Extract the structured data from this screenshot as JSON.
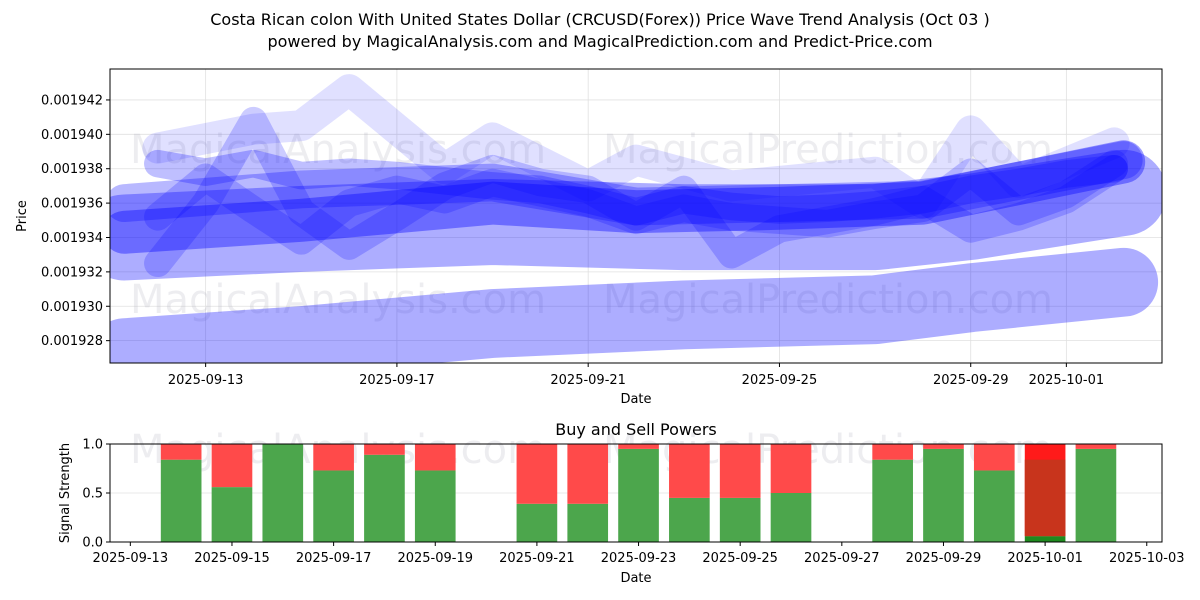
{
  "header": {
    "title": "Costa Rican colon With United States Dollar (CRCUSD(Forex)) Price Wave Trend Analysis (Oct 03 )",
    "subtitle": "powered by MagicalAnalysis.com and MagicalPrediction.com and Predict-Price.com"
  },
  "watermarks": [
    "MagicalAnalysis.com",
    "MagicalPrediction.com"
  ],
  "colors": {
    "wave": "#0000ff",
    "buy": "#4ca64c",
    "sell": "#ff4a4a",
    "sell_strong": "#ff1a1a",
    "overlay_dark": "#c8341c",
    "buy_dark": "#1f8a1f",
    "grid": "#e0e0e0"
  },
  "chart_data": [
    {
      "type": "area",
      "title": "",
      "xlabel": "Date",
      "ylabel": "Price",
      "xlim": [
        "2025-09-11",
        "2025-10-03"
      ],
      "ylim": [
        0.0019267,
        0.0019438
      ],
      "x_ticks": [
        "2025-09-13",
        "2025-09-17",
        "2025-09-21",
        "2025-09-25",
        "2025-09-29",
        "2025-10-01"
      ],
      "y_ticks": [
        "0.001928",
        "0.001930",
        "0.001932",
        "0.001934",
        "0.001936",
        "0.001938",
        "0.001940",
        "0.001942"
      ],
      "grid": true,
      "series": [
        {
          "name": "wave-low-band",
          "opacity": 0.32,
          "width": 4e-06,
          "x": [
            "2025-09-11.3",
            "2025-09-15",
            "2025-09-19",
            "2025-09-23",
            "2025-09-27",
            "2025-09-29",
            "2025-10-02.2"
          ],
          "y": [
            0.0019273,
            0.001928,
            0.001929,
            0.0019295,
            0.0019298,
            0.0019305,
            0.0019314
          ]
        },
        {
          "name": "wave-mid-band-wide",
          "opacity": 0.32,
          "width": 5e-06,
          "x": [
            "2025-09-11.3",
            "2025-09-15",
            "2025-09-19",
            "2025-09-23",
            "2025-09-27",
            "2025-09-29",
            "2025-10-02.2"
          ],
          "y": [
            0.001934,
            0.0019345,
            0.0019349,
            0.0019346,
            0.0019346,
            0.0019352,
            0.0019366
          ]
        },
        {
          "name": "wave-core-band",
          "opacity": 0.38,
          "width": 2.5e-06,
          "x": [
            "2025-09-11.3",
            "2025-09-15",
            "2025-09-19",
            "2025-09-22",
            "2025-09-25",
            "2025-09-28",
            "2025-10-02.2"
          ],
          "y": [
            0.0019343,
            0.001935,
            0.001936,
            0.0019355,
            0.0019357,
            0.001936,
            0.0019384
          ]
        },
        {
          "name": "wave-upper-band",
          "opacity": 0.28,
          "width": 2.2e-06,
          "x": [
            "2025-09-11.3",
            "2025-09-15",
            "2025-09-19",
            "2025-09-22",
            "2025-09-25",
            "2025-09-28",
            "2025-10-02.2"
          ],
          "y": [
            0.001936,
            0.0019368,
            0.0019372,
            0.0019358,
            0.001936,
            0.0019362,
            0.0019385
          ]
        },
        {
          "name": "wave-zigzag-1",
          "opacity": 0.25,
          "width": 1.6e-06,
          "x": [
            "2025-09-12",
            "2025-09-13",
            "2025-09-14",
            "2025-09-15",
            "2025-09-16",
            "2025-09-17",
            "2025-09-18",
            "2025-09-19",
            "2025-09-20",
            "2025-09-21",
            "2025-09-22",
            "2025-09-23",
            "2025-09-24",
            "2025-09-25",
            "2025-09-26",
            "2025-09-27",
            "2025-09-28",
            "2025-09-29",
            "2025-09-30",
            "2025-10-01",
            "2025-10-02"
          ],
          "y": [
            0.0019383,
            0.0019378,
            0.0019383,
            0.0019376,
            0.0019378,
            0.0019376,
            0.0019373,
            0.001937,
            0.0019368,
            0.0019362,
            0.0019355,
            0.0019362,
            0.0019358,
            0.0019356,
            0.0019357,
            0.0019359,
            0.0019362,
            0.0019368,
            0.0019372,
            0.0019377,
            0.001938
          ]
        },
        {
          "name": "wave-zigzag-2",
          "opacity": 0.2,
          "width": 1.6e-06,
          "x": [
            "2025-09-12",
            "2025-09-13",
            "2025-09-14",
            "2025-09-15",
            "2025-09-16",
            "2025-09-17",
            "2025-09-18",
            "2025-09-19",
            "2025-09-20",
            "2025-09-21",
            "2025-09-22",
            "2025-09-23",
            "2025-09-24",
            "2025-09-25",
            "2025-09-26",
            "2025-09-27",
            "2025-09-28",
            "2025-09-29",
            "2025-09-30",
            "2025-10-01",
            "2025-10-02"
          ],
          "y": [
            0.0019325,
            0.001936,
            0.0019408,
            0.0019355,
            0.0019335,
            0.0019352,
            0.001937,
            0.001938,
            0.0019372,
            0.0019368,
            0.0019352,
            0.0019368,
            0.001933,
            0.0019345,
            0.001935,
            0.0019355,
            0.0019362,
            0.0019345,
            0.0019352,
            0.0019362,
            0.001938
          ]
        },
        {
          "name": "wave-zigzag-3",
          "opacity": 0.2,
          "width": 1.6e-06,
          "x": [
            "2025-09-12",
            "2025-09-13",
            "2025-09-14",
            "2025-09-15",
            "2025-09-16",
            "2025-09-17",
            "2025-09-18",
            "2025-09-19",
            "2025-09-20",
            "2025-09-21",
            "2025-09-22",
            "2025-09-23",
            "2025-09-24",
            "2025-09-25",
            "2025-09-26",
            "2025-09-27",
            "2025-09-28",
            "2025-09-29",
            "2025-09-30",
            "2025-10-01",
            "2025-10-02"
          ],
          "y": [
            0.0019352,
            0.0019375,
            0.0019356,
            0.0019338,
            0.001936,
            0.0019368,
            0.0019362,
            0.0019372,
            0.0019366,
            0.001936,
            0.001935,
            0.0019357,
            0.0019352,
            0.001935,
            0.0019348,
            0.0019353,
            0.0019357,
            0.0019378,
            0.0019355,
            0.0019365,
            0.0019383
          ]
        },
        {
          "name": "wave-light-top",
          "opacity": 0.12,
          "width": 1.8e-06,
          "x": [
            "2025-09-12",
            "2025-09-14",
            "2025-09-15",
            "2025-09-16",
            "2025-09-18",
            "2025-09-19",
            "2025-09-21",
            "2025-09-22",
            "2025-09-24",
            "2025-09-27",
            "2025-09-28",
            "2025-09-29",
            "2025-09-30",
            "2025-10-02"
          ],
          "y": [
            0.0019392,
            0.0019403,
            0.0019405,
            0.0019426,
            0.001938,
            0.0019398,
            0.001937,
            0.0019385,
            0.001937,
            0.0019378,
            0.001936,
            0.0019402,
            0.0019372,
            0.0019395
          ]
        }
      ]
    },
    {
      "type": "bar",
      "title": "Buy and Sell Powers",
      "xlabel": "Date",
      "ylabel": "Signal Strength",
      "xlim": [
        "2025-09-12.6",
        "2025-10-03.3"
      ],
      "ylim": [
        0,
        1.0
      ],
      "x_ticks": [
        "2025-09-13",
        "2025-09-15",
        "2025-09-17",
        "2025-09-19",
        "2025-09-21",
        "2025-09-23",
        "2025-09-25",
        "2025-09-27",
        "2025-09-29",
        "2025-10-01",
        "2025-10-03"
      ],
      "y_ticks": [
        "0.0",
        "0.5",
        "1.0"
      ],
      "grid": true,
      "categories": [
        "2025-09-14",
        "2025-09-15",
        "2025-09-16",
        "2025-09-17",
        "2025-09-18",
        "2025-09-19",
        "2025-09-21",
        "2025-09-22",
        "2025-09-23",
        "2025-09-24",
        "2025-09-25",
        "2025-09-26",
        "2025-09-28",
        "2025-09-29",
        "2025-09-30",
        "2025-10-01",
        "2025-10-02"
      ],
      "series": [
        {
          "name": "Buy",
          "values": [
            0.84,
            0.56,
            1.0,
            0.73,
            0.89,
            0.73,
            0.39,
            0.39,
            0.95,
            0.45,
            0.45,
            0.5,
            0.84,
            0.95,
            0.73,
            0.06,
            0.95
          ]
        },
        {
          "name": "Sell",
          "values": [
            0.16,
            0.44,
            0.0,
            0.27,
            0.11,
            0.27,
            0.61,
            0.61,
            0.05,
            0.55,
            0.55,
            0.5,
            0.16,
            0.05,
            0.27,
            0.94,
            0.05
          ]
        }
      ],
      "highlight": {
        "category": "2025-10-01",
        "overlay_top": 0.84
      }
    }
  ]
}
